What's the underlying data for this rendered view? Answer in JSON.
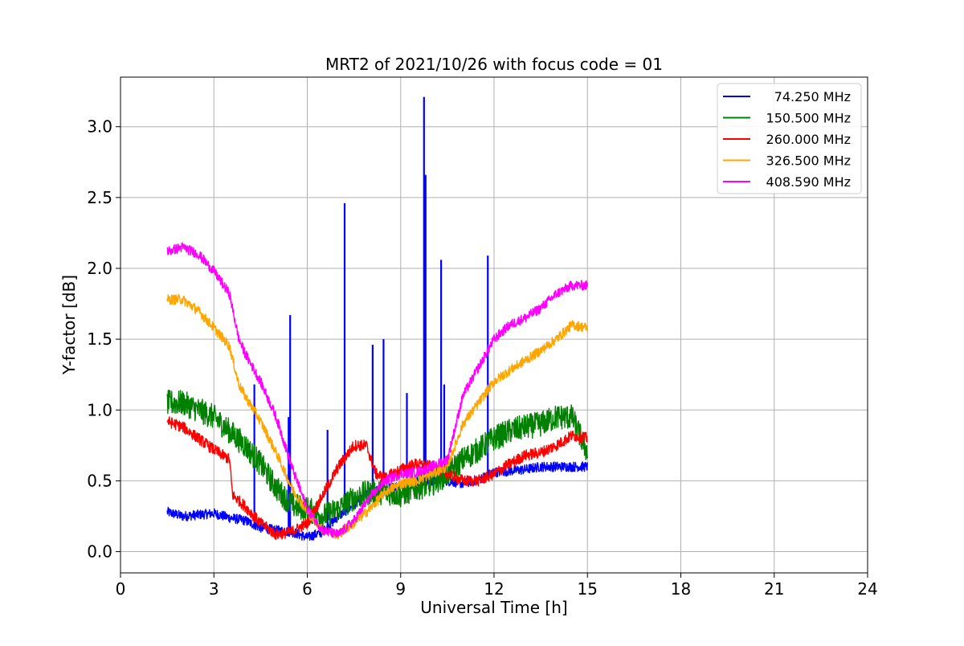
{
  "chart_data": {
    "type": "line",
    "title": "MRT2 of 2021/10/26 with focus code = 01",
    "xlabel": "Universal Time [h]",
    "ylabel": "Y-factor [dB]",
    "xlim": [
      0,
      24
    ],
    "ylim": [
      -0.15,
      3.35
    ],
    "xticks": [
      0,
      3,
      6,
      9,
      12,
      15,
      18,
      21,
      24
    ],
    "yticks": [
      0.0,
      0.5,
      1.0,
      1.5,
      2.0,
      2.5,
      3.0
    ],
    "xtick_labels": [
      "0",
      "3",
      "6",
      "9",
      "12",
      "15",
      "18",
      "21",
      "24"
    ],
    "ytick_labels": [
      "0.0",
      "0.5",
      "1.0",
      "1.5",
      "2.0",
      "2.5",
      "3.0"
    ],
    "grid": true,
    "legend_position": "top-right",
    "series": [
      {
        "name": "74.250 MHz",
        "color": "#0000ff",
        "noise": 0.035,
        "x": [
          1.5,
          2.0,
          2.5,
          3.0,
          3.5,
          4.0,
          4.5,
          5.0,
          5.5,
          6.0,
          6.5,
          7.0,
          7.5,
          8.0,
          8.5,
          9.0,
          9.5,
          10.0,
          10.5,
          11.0,
          11.5,
          12.0,
          12.5,
          13.0,
          13.5,
          14.0,
          14.5,
          15.0
        ],
        "y": [
          0.28,
          0.25,
          0.26,
          0.27,
          0.24,
          0.22,
          0.17,
          0.15,
          0.14,
          0.1,
          0.14,
          0.25,
          0.33,
          0.42,
          0.44,
          0.47,
          0.5,
          0.5,
          0.5,
          0.48,
          0.51,
          0.56,
          0.57,
          0.58,
          0.6,
          0.6,
          0.6,
          0.6
        ],
        "spikes": [
          [
            5.45,
            1.67
          ],
          [
            7.2,
            2.46
          ],
          [
            8.1,
            1.46
          ],
          [
            8.45,
            1.5
          ],
          [
            9.2,
            1.12
          ],
          [
            9.75,
            3.21
          ],
          [
            9.8,
            2.66
          ],
          [
            10.3,
            2.06
          ],
          [
            10.4,
            1.18
          ],
          [
            11.8,
            2.09
          ],
          [
            6.65,
            0.86
          ],
          [
            5.4,
            0.95
          ],
          [
            4.3,
            1.18
          ]
        ]
      },
      {
        "name": "150.500 MHz",
        "color": "#008000",
        "noise": 0.09,
        "x": [
          1.5,
          2.0,
          2.5,
          3.0,
          3.5,
          4.0,
          4.5,
          5.0,
          5.5,
          6.0,
          6.5,
          7.0,
          7.5,
          8.0,
          8.5,
          9.0,
          9.5,
          10.0,
          10.5,
          11.0,
          11.5,
          12.0,
          12.5,
          13.0,
          13.5,
          14.0,
          14.5,
          15.0
        ],
        "y": [
          1.05,
          1.05,
          1.0,
          0.95,
          0.85,
          0.75,
          0.62,
          0.45,
          0.33,
          0.3,
          0.25,
          0.3,
          0.38,
          0.42,
          0.42,
          0.4,
          0.45,
          0.48,
          0.55,
          0.65,
          0.72,
          0.8,
          0.85,
          0.88,
          0.9,
          0.95,
          0.95,
          0.7
        ],
        "spikes": []
      },
      {
        "name": "260.000 MHz",
        "color": "#ff0000",
        "noise": 0.04,
        "x": [
          1.5,
          2.0,
          2.5,
          3.0,
          3.5,
          3.6,
          4.0,
          4.5,
          5.0,
          5.5,
          6.0,
          6.5,
          7.0,
          7.5,
          7.9,
          8.2,
          8.5,
          9.0,
          9.5,
          10.0,
          10.5,
          11.0,
          11.5,
          12.0,
          12.5,
          13.0,
          13.5,
          14.0,
          14.5,
          15.0
        ],
        "y": [
          0.92,
          0.88,
          0.8,
          0.72,
          0.65,
          0.4,
          0.32,
          0.2,
          0.12,
          0.14,
          0.2,
          0.4,
          0.6,
          0.75,
          0.75,
          0.55,
          0.52,
          0.58,
          0.62,
          0.6,
          0.55,
          0.5,
          0.5,
          0.55,
          0.62,
          0.68,
          0.7,
          0.75,
          0.82,
          0.8
        ],
        "spikes": []
      },
      {
        "name": "326.500 MHz",
        "color": "#ffa500",
        "noise": 0.035,
        "x": [
          1.5,
          2.0,
          2.5,
          3.0,
          3.5,
          3.8,
          4.0,
          4.5,
          5.0,
          5.5,
          6.0,
          6.5,
          7.0,
          7.5,
          8.0,
          8.5,
          9.0,
          9.5,
          10.0,
          10.5,
          11.0,
          11.5,
          12.0,
          12.5,
          13.0,
          13.5,
          14.0,
          14.5,
          15.0
        ],
        "y": [
          1.78,
          1.78,
          1.7,
          1.58,
          1.45,
          1.18,
          1.1,
          0.92,
          0.7,
          0.45,
          0.28,
          0.15,
          0.12,
          0.2,
          0.3,
          0.42,
          0.48,
          0.5,
          0.55,
          0.6,
          0.9,
          1.05,
          1.2,
          1.28,
          1.35,
          1.42,
          1.5,
          1.6,
          1.58
        ],
        "spikes": []
      },
      {
        "name": "408.590 MHz",
        "color": "#ff00ff",
        "noise": 0.035,
        "x": [
          1.5,
          2.0,
          2.5,
          3.0,
          3.5,
          3.8,
          4.0,
          4.5,
          5.0,
          5.5,
          6.0,
          6.5,
          7.0,
          7.5,
          8.0,
          8.5,
          9.0,
          9.5,
          10.0,
          10.5,
          11.0,
          11.5,
          12.0,
          12.5,
          13.0,
          13.5,
          14.0,
          14.5,
          15.0
        ],
        "y": [
          2.12,
          2.15,
          2.1,
          1.98,
          1.82,
          1.5,
          1.4,
          1.2,
          0.95,
          0.6,
          0.3,
          0.15,
          0.12,
          0.22,
          0.38,
          0.5,
          0.55,
          0.56,
          0.6,
          0.65,
          1.1,
          1.3,
          1.5,
          1.6,
          1.65,
          1.72,
          1.82,
          1.88,
          1.88
        ],
        "spikes": []
      }
    ]
  }
}
